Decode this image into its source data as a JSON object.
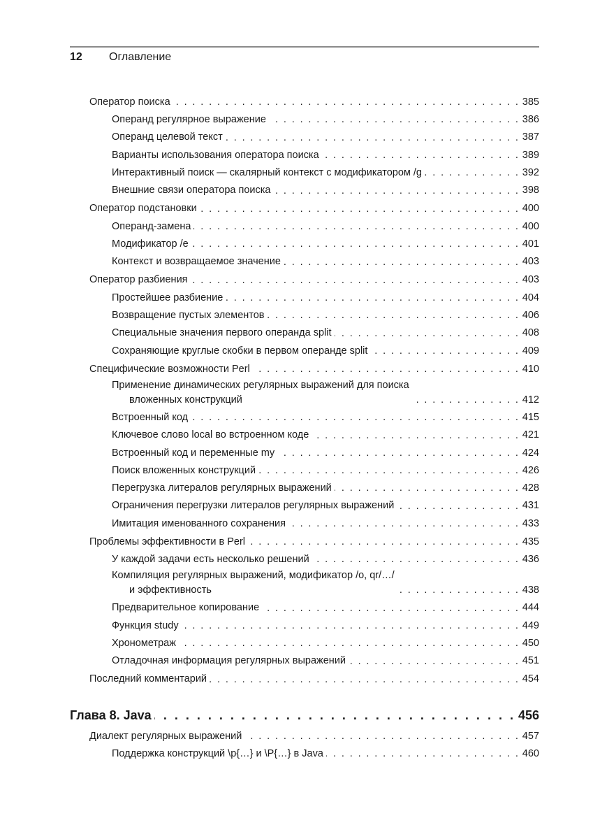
{
  "header": {
    "page_number": "12",
    "title": "Оглавление"
  },
  "entries": [
    {
      "level": 1,
      "title": "Оператор поиска",
      "page": "385"
    },
    {
      "level": 2,
      "title": "Операнд регулярное выражение",
      "page": "386"
    },
    {
      "level": 2,
      "title": "Операнд целевой текст",
      "page": "387"
    },
    {
      "level": 2,
      "title": "Варианты использования оператора поиска",
      "page": "389"
    },
    {
      "level": 2,
      "title": "Интерактивный поиск — скалярный контекст с модификатором /g",
      "page": "392"
    },
    {
      "level": 2,
      "title": "Внешние связи оператора поиска",
      "page": "398"
    },
    {
      "level": 1,
      "title": "Оператор подстановки",
      "page": "400"
    },
    {
      "level": 2,
      "title": "Операнд-замена",
      "page": "400"
    },
    {
      "level": 2,
      "title": "Модификатор /e",
      "page": "401"
    },
    {
      "level": 2,
      "title": "Контекст и возвращаемое значение",
      "page": "403"
    },
    {
      "level": 1,
      "title": "Оператор разбиения",
      "page": "403"
    },
    {
      "level": 2,
      "title": "Простейшее разбиение",
      "page": "404"
    },
    {
      "level": 2,
      "title": "Возвращение пустых элементов",
      "page": "406"
    },
    {
      "level": 2,
      "title": "Специальные значения первого операнда split",
      "page": "408"
    },
    {
      "level": 2,
      "title": "Сохраняющие круглые скобки в первом операнде split",
      "page": "409"
    },
    {
      "level": 1,
      "title": "Специфические возможности Perl",
      "page": "410"
    },
    {
      "level": 2,
      "title": "Применение динамических регулярных выражений для поиска",
      "title_cont": "вложенных конструкций",
      "page": "412"
    },
    {
      "level": 2,
      "title": "Встроенный код",
      "page": "415"
    },
    {
      "level": 2,
      "title": "Ключевое слово local во встроенном коде",
      "page": "421"
    },
    {
      "level": 2,
      "title": "Встроенный код и переменные my",
      "page": "424"
    },
    {
      "level": 2,
      "title": "Поиск вложенных конструкций",
      "page": "426"
    },
    {
      "level": 2,
      "title": "Перегрузка литералов регулярных выражений",
      "page": "428"
    },
    {
      "level": 2,
      "title": "Ограничения перегрузки литералов регулярных выражений",
      "page": "431"
    },
    {
      "level": 2,
      "title": "Имитация именованного сохранения",
      "page": "433"
    },
    {
      "level": 1,
      "title": "Проблемы эффективности в Perl",
      "page": "435"
    },
    {
      "level": 2,
      "title": "У каждой задачи есть несколько решений",
      "page": "436"
    },
    {
      "level": 2,
      "title": "Компиляция регулярных выражений, модификатор /o, qr/…/",
      "title_cont": "и эффективность",
      "page": "438"
    },
    {
      "level": 2,
      "title": "Предварительное копирование",
      "page": "444"
    },
    {
      "level": 2,
      "title": "Функция study",
      "page": "449"
    },
    {
      "level": 2,
      "title": "Хронометраж",
      "page": "450"
    },
    {
      "level": 2,
      "title": "Отладочная информация регулярных выражений",
      "page": "451"
    },
    {
      "level": 1,
      "title": "Последний комментарий",
      "page": "454"
    }
  ],
  "chapter": {
    "title": "Глава 8. Java",
    "page": "456"
  },
  "chapter_entries": [
    {
      "level": 1,
      "title": "Диалект регулярных выражений",
      "page": "457"
    },
    {
      "level": 2,
      "title": "Поддержка конструкций \\p{…} и \\P{…} в Java",
      "page": "460"
    }
  ]
}
